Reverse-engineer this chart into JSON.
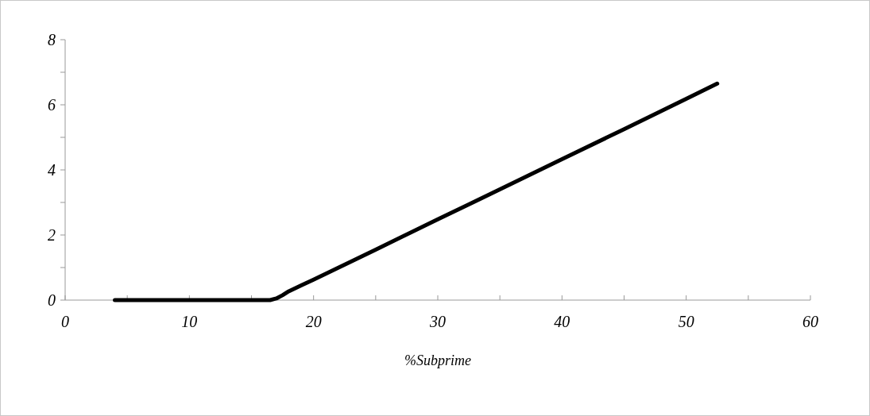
{
  "chart_data": {
    "type": "line",
    "xlabel": "%Subprime",
    "series": [
      {
        "color": "#000000",
        "x": [
          4,
          6,
          8,
          10,
          12,
          14,
          16,
          16.5,
          17,
          17.5,
          18,
          19,
          20,
          25,
          30,
          35,
          40,
          45,
          50,
          52.5
        ],
        "values": [
          0,
          0,
          0,
          0,
          0,
          0,
          0,
          0,
          0.05,
          0.15,
          0.27,
          0.45,
          0.63,
          1.55,
          2.48,
          3.4,
          4.33,
          5.25,
          6.18,
          6.65
        ]
      }
    ],
    "xlim": [
      0,
      60
    ],
    "xticks": [
      0,
      {
        "value": 5,
        "label": null
      },
      10,
      {
        "value": 15,
        "label": null
      },
      20,
      {
        "value": 25,
        "label": null
      },
      30,
      {
        "value": 35,
        "label": null
      },
      40,
      {
        "value": 45,
        "label": null
      },
      50,
      {
        "value": 55,
        "label": null
      },
      60
    ],
    "ylim": [
      0,
      8
    ],
    "yticks": [
      0,
      {
        "value": 1,
        "label": null
      },
      2,
      {
        "value": 3,
        "label": null
      },
      4,
      {
        "value": 5,
        "label": null
      },
      6,
      {
        "value": 7,
        "label": null
      },
      8
    ],
    "grid": false,
    "marker": "none",
    "line_style": "solid"
  }
}
